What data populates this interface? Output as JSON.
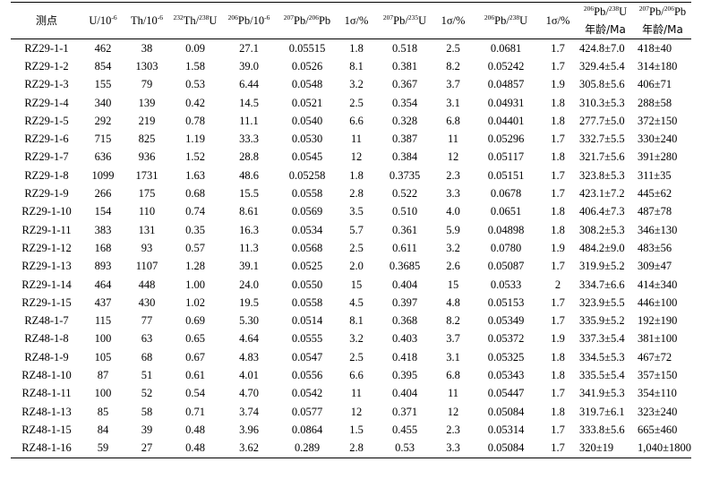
{
  "table": {
    "headers": {
      "spot": "测点",
      "u_base": "U/10",
      "u_sup": "-6",
      "th_base": "Th/10",
      "th_sup": "-6",
      "thu_sup1": "232",
      "thu_mid": "Th/",
      "thu_sup2": "238",
      "thu_end": "U",
      "pb206_sup": "206",
      "pb206_base": "Pb/10",
      "pb206_sup2": "-6",
      "r76_sup1": "207",
      "r76_mid": "Pb/",
      "r76_sup2": "206",
      "r76_end": "Pb",
      "sig1": "1σ/%",
      "r75_sup1": "207",
      "r75_mid": "Pb/",
      "r75_sup2": "235",
      "r75_end": "U",
      "sig2": "1σ/%",
      "r68_sup1": "206",
      "r68_mid": "Pb/",
      "r68_sup2": "238",
      "r68_end": "U",
      "sig3": "1σ/%",
      "age68_sup1": "206",
      "age68_mid": "Pb/",
      "age68_sup2": "238",
      "age68_end": "U",
      "age68_unit": "年龄/Ma",
      "age76_sup1": "207",
      "age76_mid": "Pb/",
      "age76_sup2": "206",
      "age76_end": "Pb",
      "age76_unit": "年龄/Ma"
    },
    "rows": [
      [
        "RZ29-1-1",
        "462",
        "38",
        "0.09",
        "27.1",
        "0.05515",
        "1.8",
        "0.518",
        "2.5",
        "0.0681",
        "1.7",
        "424.8±7.0",
        "418±40"
      ],
      [
        "RZ29-1-2",
        "854",
        "1303",
        "1.58",
        "39.0",
        "0.0526",
        "8.1",
        "0.381",
        "8.2",
        "0.05242",
        "1.7",
        "329.4±5.4",
        "314±180"
      ],
      [
        "RZ29-1-3",
        "155",
        "79",
        "0.53",
        "6.44",
        "0.0548",
        "3.2",
        "0.367",
        "3.7",
        "0.04857",
        "1.9",
        "305.8±5.6",
        "406±71"
      ],
      [
        "RZ29-1-4",
        "340",
        "139",
        "0.42",
        "14.5",
        "0.0521",
        "2.5",
        "0.354",
        "3.1",
        "0.04931",
        "1.8",
        "310.3±5.3",
        "288±58"
      ],
      [
        "RZ29-1-5",
        "292",
        "219",
        "0.78",
        "11.1",
        "0.0540",
        "6.6",
        "0.328",
        "6.8",
        "0.04401",
        "1.8",
        "277.7±5.0",
        "372±150"
      ],
      [
        "RZ29-1-6",
        "715",
        "825",
        "1.19",
        "33.3",
        "0.0530",
        "11",
        "0.387",
        "11",
        "0.05296",
        "1.7",
        "332.7±5.5",
        "330±240"
      ],
      [
        "RZ29-1-7",
        "636",
        "936",
        "1.52",
        "28.8",
        "0.0545",
        "12",
        "0.384",
        "12",
        "0.05117",
        "1.8",
        "321.7±5.6",
        "391±280"
      ],
      [
        "RZ29-1-8",
        "1099",
        "1731",
        "1.63",
        "48.6",
        "0.05258",
        "1.8",
        "0.3735",
        "2.3",
        "0.05151",
        "1.7",
        "323.8±5.3",
        "311±35"
      ],
      [
        "RZ29-1-9",
        "266",
        "175",
        "0.68",
        "15.5",
        "0.0558",
        "2.8",
        "0.522",
        "3.3",
        "0.0678",
        "1.7",
        "423.1±7.2",
        "445±62"
      ],
      [
        "RZ29-1-10",
        "154",
        "110",
        "0.74",
        "8.61",
        "0.0569",
        "3.5",
        "0.510",
        "4.0",
        "0.0651",
        "1.8",
        "406.4±7.3",
        "487±78"
      ],
      [
        "RZ29-1-11",
        "383",
        "131",
        "0.35",
        "16.3",
        "0.0534",
        "5.7",
        "0.361",
        "5.9",
        "0.04898",
        "1.8",
        "308.2±5.3",
        "346±130"
      ],
      [
        "RZ29-1-12",
        "168",
        "93",
        "0.57",
        "11.3",
        "0.0568",
        "2.5",
        "0.611",
        "3.2",
        "0.0780",
        "1.9",
        "484.2±9.0",
        "483±56"
      ],
      [
        "RZ29-1-13",
        "893",
        "1107",
        "1.28",
        "39.1",
        "0.0525",
        "2.0",
        "0.3685",
        "2.6",
        "0.05087",
        "1.7",
        "319.9±5.2",
        "309±47"
      ],
      [
        "RZ29-1-14",
        "464",
        "448",
        "1.00",
        "24.0",
        "0.0550",
        "15",
        "0.404",
        "15",
        "0.0533",
        "2",
        "334.7±6.6",
        "414±340"
      ],
      [
        "RZ29-1-15",
        "437",
        "430",
        "1.02",
        "19.5",
        "0.0558",
        "4.5",
        "0.397",
        "4.8",
        "0.05153",
        "1.7",
        "323.9±5.5",
        "446±100"
      ],
      [
        "RZ48-1-7",
        "115",
        "77",
        "0.69",
        "5.30",
        "0.0514",
        "8.1",
        "0.368",
        "8.2",
        "0.05349",
        "1.7",
        "335.9±5.2",
        "192±190"
      ],
      [
        "RZ48-1-8",
        "100",
        "63",
        "0.65",
        "4.64",
        "0.0555",
        "3.2",
        "0.403",
        "3.7",
        "0.05372",
        "1.9",
        "337.3±5.4",
        "381±100"
      ],
      [
        "RZ48-1-9",
        "105",
        "68",
        "0.67",
        "4.83",
        "0.0547",
        "2.5",
        "0.418",
        "3.1",
        "0.05325",
        "1.8",
        "334.5±5.3",
        "467±72"
      ],
      [
        "RZ48-1-10",
        "87",
        "51",
        "0.61",
        "4.01",
        "0.0556",
        "6.6",
        "0.395",
        "6.8",
        "0.05343",
        "1.8",
        "335.5±5.4",
        "357±150"
      ],
      [
        "RZ48-1-11",
        "100",
        "52",
        "0.54",
        "4.70",
        "0.0542",
        "11",
        "0.404",
        "11",
        "0.05447",
        "1.7",
        "341.9±5.3",
        "354±110"
      ],
      [
        "RZ48-1-13",
        "85",
        "58",
        "0.71",
        "3.74",
        "0.0577",
        "12",
        "0.371",
        "12",
        "0.05084",
        "1.8",
        "319.7±6.1",
        "323±240"
      ],
      [
        "RZ48-1-15",
        "84",
        "39",
        "0.48",
        "3.96",
        "0.0864",
        "1.5",
        "0.455",
        "2.3",
        "0.05314",
        "1.7",
        "333.8±5.6",
        "665±460"
      ],
      [
        "RZ48-1-16",
        "59",
        "27",
        "0.48",
        "3.62",
        "0.289",
        "2.8",
        "0.53",
        "3.3",
        "0.05084",
        "1.7",
        "320±19",
        "1,040±1800"
      ]
    ]
  }
}
